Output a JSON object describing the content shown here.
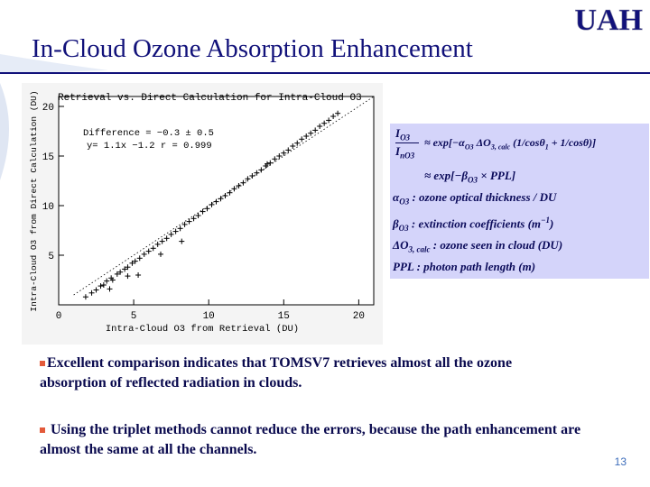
{
  "logo": {
    "text": "UAH"
  },
  "slide": {
    "title": "In-Cloud Ozone Absorption Enhancement",
    "page_number": "13"
  },
  "equations": {
    "line1_lhs_top": "I",
    "line1_lhs_top_sub": "O3",
    "line1_lhs_bot": "I",
    "line1_lhs_bot_sub": "nO3",
    "line1_rhs": "≈ exp[−α",
    "line1_rhs_sub1": "O3",
    "line1_rhs_2": " ΔO",
    "line1_rhs_sub2": "3, calc",
    "line1_rhs_3": " (1/cosθ",
    "line1_rhs_sub3": "1",
    "line1_rhs_4": " + 1/cosθ)]",
    "line2": "≈ exp[−β",
    "line2_sub": "O3",
    "line2_tail": " × PPL]",
    "def1_sym": "α",
    "def1_sub": "O3",
    "def1_text": " : ozone   optical   thickness / DU",
    "def2_sym": "β",
    "def2_sub": "O3",
    "def2_text": " : extinction   coefficients   (m",
    "def2_sup": "−1",
    "def2_end": ")",
    "def3_sym": "ΔO",
    "def3_sub": "3, calc",
    "def3_text": " : ozone   seen   in   cloud   (DU)",
    "def4_text": "PPL : photon  path   length   (m)"
  },
  "bullets": [
    {
      "text": "Excellent comparison indicates that TOMSV7 retrieves almost all the ozone absorption of reflected radiation in clouds."
    },
    {
      "text": " Using the triplet methods cannot reduce the errors, because the path enhancement are almost the same at all the channels."
    }
  ],
  "chart_data": {
    "type": "scatter",
    "title": "Retrieval vs. Direct Calculation for Intra-Cloud O3",
    "xlabel": "Intra-Cloud O3 from Retrieval (DU)",
    "ylabel": "Intra-Cloud O3 from Direct Calculation (DU)",
    "xlim": [
      0,
      21
    ],
    "ylim": [
      0,
      21
    ],
    "xticks": [
      0,
      5,
      10,
      15,
      20
    ],
    "yticks": [
      5,
      10,
      15,
      20
    ],
    "annotation_line1": "Difference = −0.3 ± 0.5",
    "annotation_line2": "y= 1.1x −1.2    r = 0.999",
    "fit": {
      "slope": 1.1,
      "intercept": -1.2
    },
    "reference_line": {
      "slope": 1,
      "intercept": 0
    },
    "x": [
      1.8,
      2.2,
      2.5,
      2.8,
      3.0,
      3.2,
      3.5,
      3.6,
      3.9,
      4.1,
      4.4,
      4.6,
      4.9,
      5.1,
      5.4,
      5.7,
      6.0,
      6.3,
      6.6,
      6.9,
      7.2,
      7.5,
      7.8,
      8.1,
      8.4,
      8.7,
      9.0,
      9.3,
      9.6,
      9.9,
      10.2,
      10.5,
      10.8,
      11.1,
      11.4,
      11.7,
      12.0,
      12.3,
      12.6,
      12.9,
      13.2,
      13.5,
      13.8,
      14.1,
      14.4,
      14.7,
      15.0,
      15.3,
      15.6,
      15.9,
      16.2,
      16.5,
      16.8,
      17.1,
      17.4,
      17.7,
      18.0,
      18.3,
      18.6,
      3.4,
      4.6,
      8.2,
      13.9,
      5.3,
      6.8
    ],
    "y": [
      0.8,
      1.2,
      1.5,
      1.9,
      2.0,
      2.4,
      2.7,
      2.5,
      3.1,
      3.3,
      3.6,
      3.8,
      4.2,
      4.4,
      4.7,
      5.1,
      5.4,
      5.7,
      6.1,
      6.4,
      6.7,
      7.1,
      7.4,
      7.7,
      8.1,
      8.4,
      8.7,
      9.0,
      9.4,
      9.7,
      10.1,
      10.4,
      10.7,
      11.0,
      11.3,
      11.7,
      12.0,
      12.3,
      12.7,
      13.0,
      13.3,
      13.6,
      14.0,
      14.3,
      14.7,
      15.0,
      15.3,
      15.6,
      16.0,
      16.3,
      16.7,
      17.0,
      17.3,
      17.6,
      18.0,
      18.3,
      18.6,
      19.0,
      19.3,
      1.6,
      2.9,
      6.4,
      14.2,
      3.0,
      5.1
    ]
  },
  "colors": {
    "title": "#11117a",
    "bullet_marker": "#e35a3a",
    "equation_box": "#d4d4fa",
    "page_number": "#3d6dbb"
  }
}
